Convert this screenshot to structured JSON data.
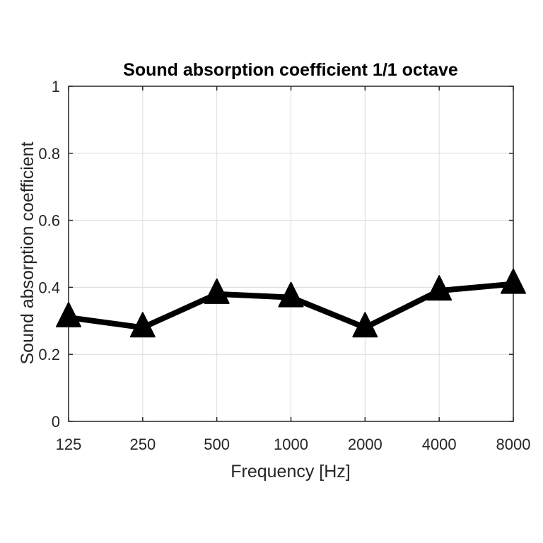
{
  "chart_data": {
    "type": "line",
    "title": "Sound absorption coefficient 1/1 octave",
    "xlabel": "Frequency [Hz]",
    "ylabel": "Sound absorption coefficient",
    "categories": [
      "125",
      "250",
      "500",
      "1000",
      "2000",
      "4000",
      "8000"
    ],
    "series": [
      {
        "values": [
          0.31,
          0.28,
          0.38,
          0.37,
          0.28,
          0.39,
          0.41
        ]
      }
    ],
    "ylim": [
      0,
      1
    ],
    "yticks": [
      "0",
      "0.2",
      "0.4",
      "0.6",
      "0.8",
      "1"
    ],
    "grid": true,
    "marker": "triangle",
    "line_color": "#000000",
    "grid_color": "#dcdcdc"
  }
}
